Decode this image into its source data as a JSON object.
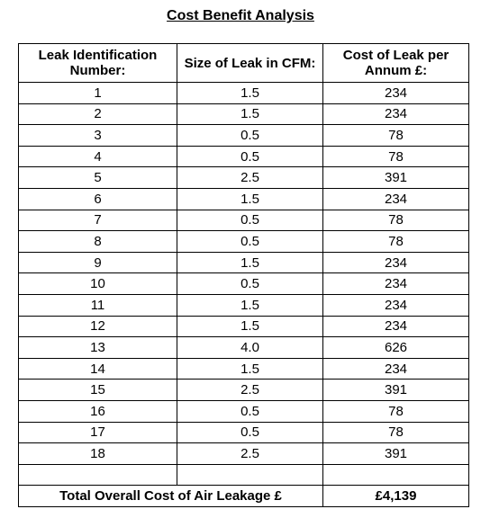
{
  "title": "Cost Benefit Analysis",
  "headers": [
    "Leak Identification Number:",
    "Size of Leak in CFM:",
    "Cost of Leak per Annum £:"
  ],
  "rows": [
    {
      "id": "1",
      "size": "1.5",
      "cost": "234"
    },
    {
      "id": "2",
      "size": "1.5",
      "cost": "234"
    },
    {
      "id": "3",
      "size": "0.5",
      "cost": "78"
    },
    {
      "id": "4",
      "size": "0.5",
      "cost": "78"
    },
    {
      "id": "5",
      "size": "2.5",
      "cost": "391"
    },
    {
      "id": "6",
      "size": "1.5",
      "cost": "234"
    },
    {
      "id": "7",
      "size": "0.5",
      "cost": "78"
    },
    {
      "id": "8",
      "size": "0.5",
      "cost": "78"
    },
    {
      "id": "9",
      "size": "1.5",
      "cost": "234"
    },
    {
      "id": "10",
      "size": "0.5",
      "cost": "234"
    },
    {
      "id": "11",
      "size": "1.5",
      "cost": "234"
    },
    {
      "id": "12",
      "size": "1.5",
      "cost": "234"
    },
    {
      "id": "13",
      "size": "4.0",
      "cost": "626"
    },
    {
      "id": "14",
      "size": "1.5",
      "cost": "234"
    },
    {
      "id": "15",
      "size": "2.5",
      "cost": "391"
    },
    {
      "id": "16",
      "size": "0.5",
      "cost": "78"
    },
    {
      "id": "17",
      "size": "0.5",
      "cost": "78"
    },
    {
      "id": "18",
      "size": "2.5",
      "cost": "391"
    }
  ],
  "total": {
    "label": "Total Overall Cost of Air Leakage £",
    "value": "£4,139"
  }
}
